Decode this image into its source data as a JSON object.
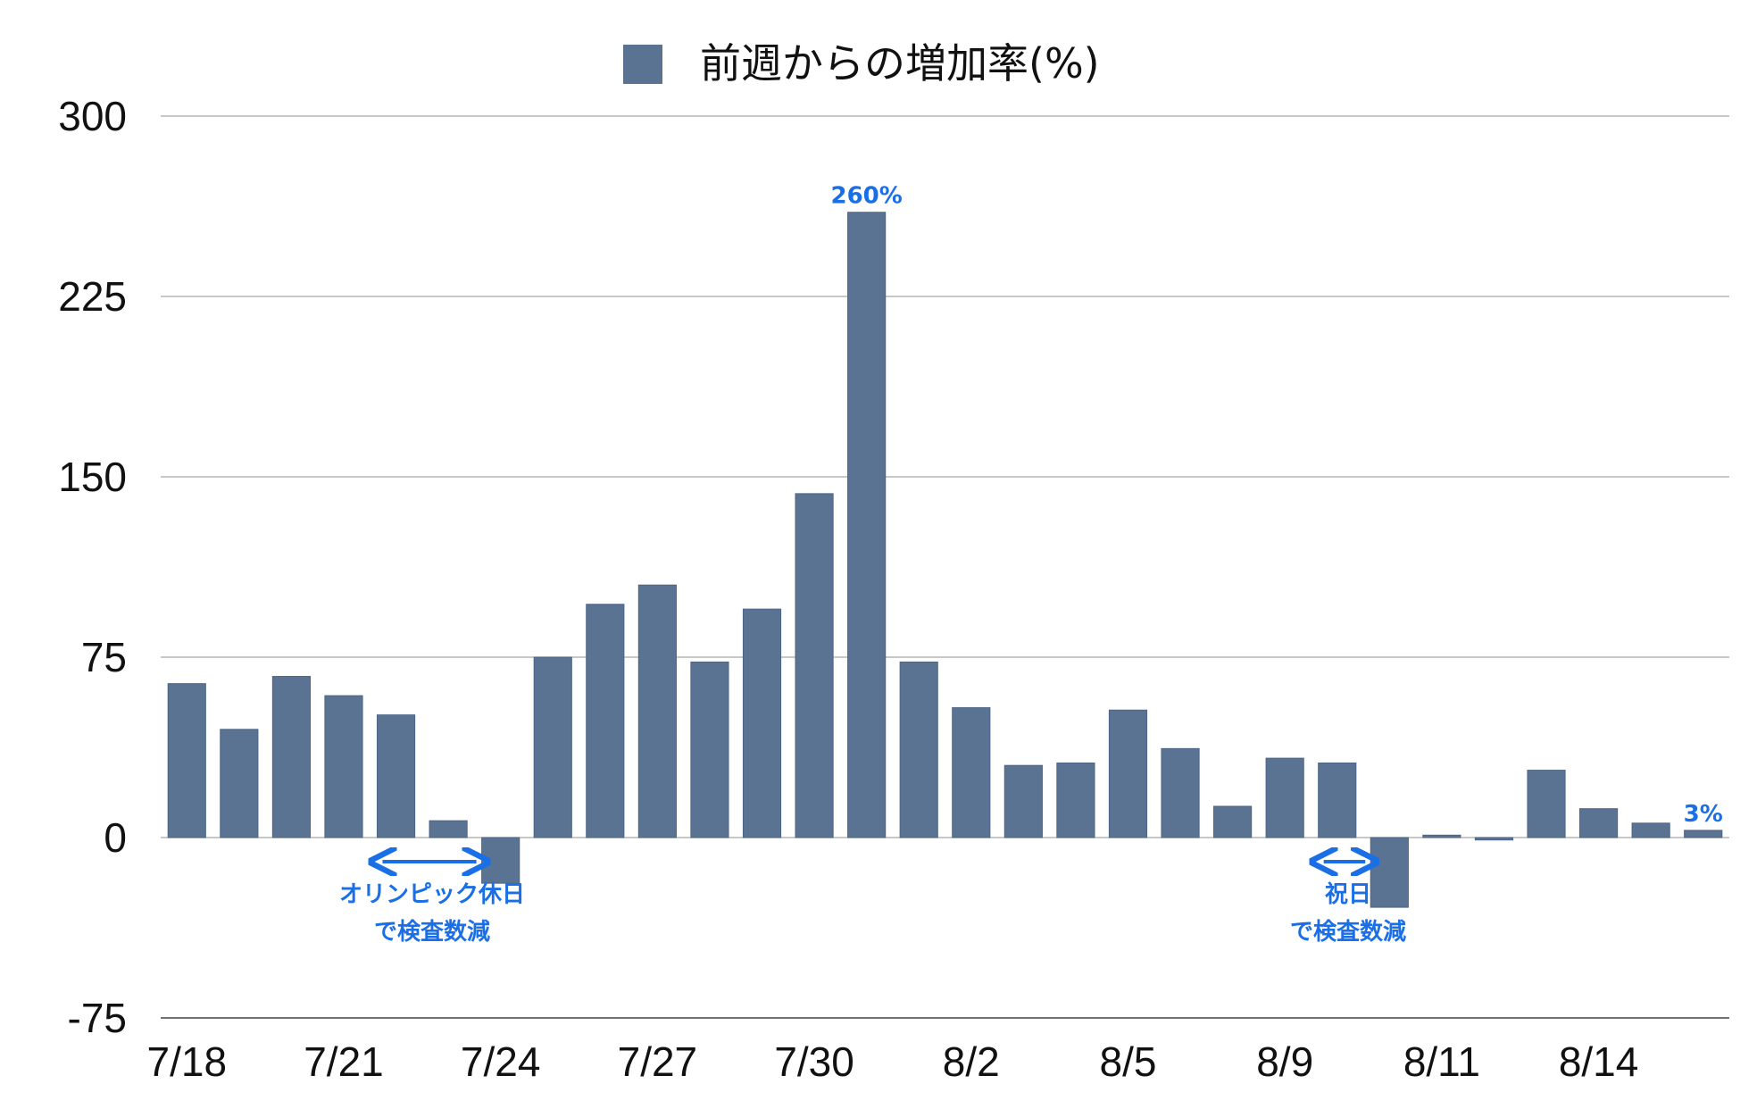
{
  "chart_data": {
    "type": "bar",
    "legend": {
      "label": "前週からの増加率(%)",
      "position": "top"
    },
    "ylim": [
      -75,
      300
    ],
    "yticks": [
      "300",
      "225",
      "150",
      "75",
      "0",
      "-75"
    ],
    "ytick_values": [
      300,
      225,
      150,
      75,
      0,
      -75
    ],
    "x_labels": [
      {
        "text": "7/18",
        "index": 0
      },
      {
        "text": "7/21",
        "index": 3
      },
      {
        "text": "7/24",
        "index": 6
      },
      {
        "text": "7/27",
        "index": 9
      },
      {
        "text": "7/30",
        "index": 12
      },
      {
        "text": "8/2",
        "index": 15
      },
      {
        "text": "8/5",
        "index": 18
      },
      {
        "text": "8/9",
        "index": 21
      },
      {
        "text": "8/11",
        "index": 24
      },
      {
        "text": "8/14",
        "index": 27
      }
    ],
    "series": [
      {
        "name": "前週からの増加率(%)",
        "color": "#5a7393",
        "values": [
          64,
          45,
          67,
          59,
          51,
          7,
          -19,
          75,
          97,
          105,
          73,
          95,
          143,
          260,
          73,
          54,
          30,
          31,
          53,
          37,
          13,
          33,
          31,
          -29,
          1,
          -1,
          28,
          12,
          6,
          3
        ]
      }
    ],
    "grid": true,
    "annotations": [
      {
        "id": "peak",
        "text": "260%",
        "bar_index": 13
      },
      {
        "id": "last",
        "text": "3%",
        "bar_index": 29
      },
      {
        "id": "olympic",
        "lines": [
          "オリンピック休日",
          "で検査数減"
        ],
        "arrow_from_index": 4,
        "arrow_to_index": 6
      },
      {
        "id": "holiday",
        "lines": [
          "祝日",
          "で検査数減"
        ],
        "arrow_from_index": 22,
        "arrow_to_index": 23
      }
    ]
  }
}
